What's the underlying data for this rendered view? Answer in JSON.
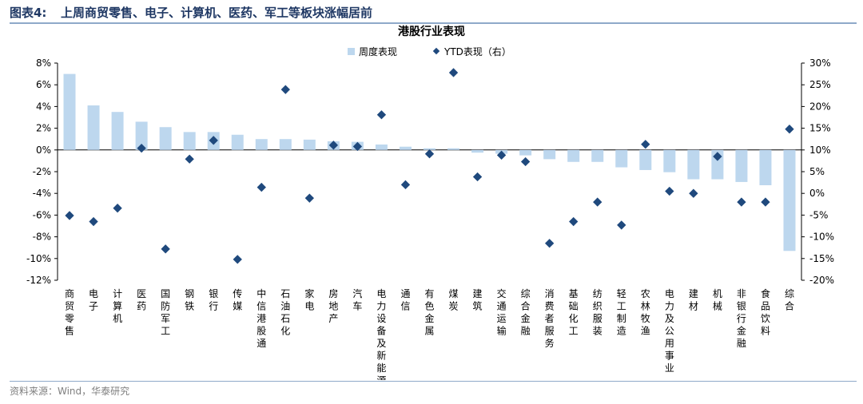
{
  "figure": {
    "number": "图表4:",
    "title": "上周商贸零售、电子、计算机、医药、军工等板块涨幅居前",
    "source": "资料来源：Wind，华泰研究"
  },
  "colors": {
    "bar": "#bdd7ee",
    "marker": "#1f497d",
    "axis": "#000000",
    "header_rule": "#8ea9c9"
  },
  "chart_data": {
    "type": "bar",
    "title": "港股行业表现",
    "legend_position": "top-center",
    "grid": false,
    "categories": [
      "商贸零售",
      "电子",
      "计算机",
      "医药",
      "国防军工",
      "钢铁",
      "银行",
      "传媒",
      "中信港股通",
      "石油石化",
      "家电",
      "房地产",
      "汽车",
      "电力设备及新能源",
      "通信",
      "有色金属",
      "煤炭",
      "建筑",
      "交通运输",
      "综合金融",
      "消费者服务",
      "基础化工",
      "纺织服装",
      "轻工制造",
      "农林牧渔",
      "电力及公用事业",
      "建材",
      "机械",
      "非银行金融",
      "食品饮料",
      "综合"
    ],
    "series": [
      {
        "name": "周度表现",
        "kind": "bar",
        "axis": "left",
        "values": [
          7.0,
          4.1,
          3.5,
          2.6,
          2.1,
          1.65,
          1.65,
          1.4,
          1.0,
          1.0,
          0.95,
          0.8,
          0.75,
          0.5,
          0.3,
          0.15,
          0.15,
          -0.25,
          -0.35,
          -0.5,
          -0.85,
          -1.1,
          -1.1,
          -1.6,
          -1.85,
          -2.05,
          -2.7,
          -2.7,
          -2.95,
          -3.25,
          -9.3
        ]
      },
      {
        "name": "YTD表现（右）",
        "kind": "scatter",
        "axis": "right",
        "values": [
          -5.1,
          -6.5,
          -3.4,
          10.4,
          -12.8,
          7.9,
          12.2,
          -15.2,
          1.4,
          23.9,
          -1.1,
          11.1,
          10.8,
          18.1,
          2.0,
          9.1,
          27.8,
          3.8,
          8.8,
          7.3,
          -11.5,
          -6.5,
          -2.0,
          -7.3,
          11.3,
          0.5,
          0.0,
          8.5,
          -2.0,
          -2.0,
          14.8
        ]
      }
    ],
    "left_axis": {
      "min": -12,
      "max": 8,
      "step": 2,
      "tick_labels": [
        "8%",
        "6%",
        "4%",
        "2%",
        "0%",
        "-2%",
        "-4%",
        "-6%",
        "-8%",
        "-10%",
        "-12%"
      ]
    },
    "right_axis": {
      "min": -20,
      "max": 30,
      "step": 5,
      "tick_labels": [
        "30%",
        "25%",
        "20%",
        "15%",
        "10%",
        "5%",
        "0%",
        "-5%",
        "-10%",
        "-15%",
        "-20%"
      ]
    }
  }
}
